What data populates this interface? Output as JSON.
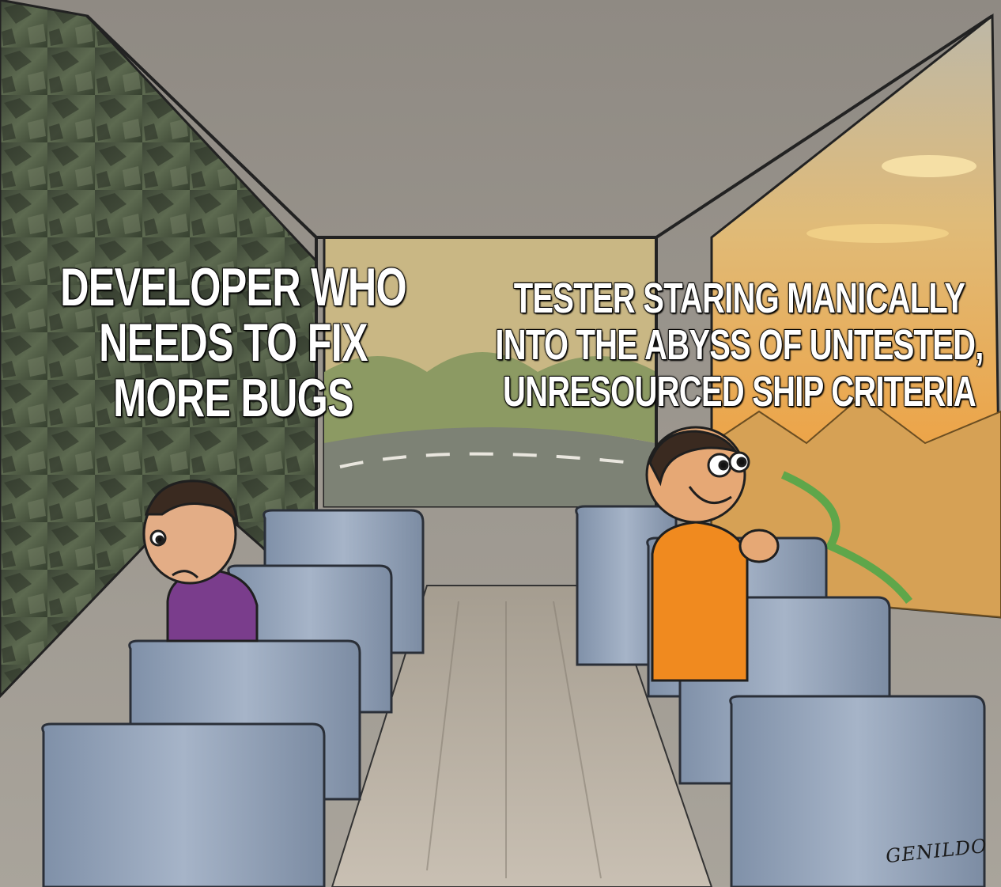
{
  "meme": {
    "caption_left": "DEVELOPER WHO\nNEEDS TO FIX\nMORE BUGS",
    "caption_right": "TESTER STARING MANICALLY\nINTO THE ABYSS OF UNTESTED,\nUNRESOURCED SHIP CRITERIA",
    "signature": "GENILDO"
  },
  "colors": {
    "ceiling": "#8c8780",
    "left_window_rock": "#4f5a45",
    "right_window_sky": "#e2a654",
    "seat_blue": "#8d9db3",
    "aisle_floor": "#b4ab9d",
    "sad_shirt": "#7a3d8c",
    "happy_shirt": "#f08a1f"
  }
}
